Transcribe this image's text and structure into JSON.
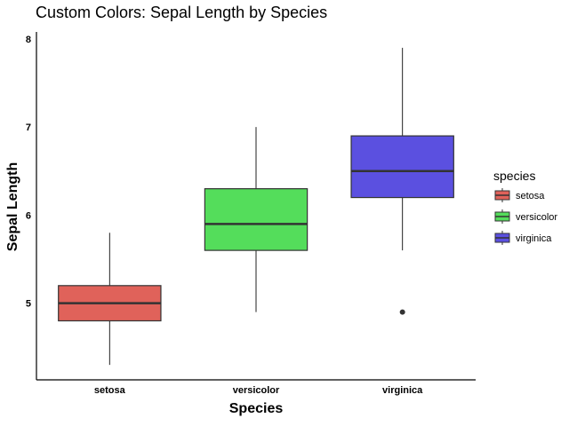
{
  "chart_data": {
    "type": "box",
    "title": "Custom Colors: Sepal Length by Species",
    "xlabel": "Species",
    "ylabel": "Sepal Length",
    "categories": [
      "setosa",
      "versicolor",
      "virginica"
    ],
    "y_ticks": [
      5,
      6,
      7,
      8
    ],
    "ylim": [
      4.13,
      8.08
    ],
    "grid": false,
    "legend": {
      "title": "species",
      "position": "right",
      "entries": [
        "setosa",
        "versicolor",
        "virginica"
      ]
    },
    "series": [
      {
        "name": "setosa",
        "color": "#E0625A",
        "min": 4.3,
        "q1": 4.8,
        "median": 5.0,
        "q3": 5.2,
        "max": 5.8,
        "outliers": []
      },
      {
        "name": "versicolor",
        "color": "#54DD5B",
        "min": 4.9,
        "q1": 5.6,
        "median": 5.9,
        "q3": 6.3,
        "max": 7.0,
        "outliers": []
      },
      {
        "name": "virginica",
        "color": "#5B50E0",
        "min": 5.6,
        "q1": 6.2,
        "median": 6.5,
        "q3": 6.9,
        "max": 7.9,
        "outliers": [
          4.9
        ]
      }
    ]
  }
}
